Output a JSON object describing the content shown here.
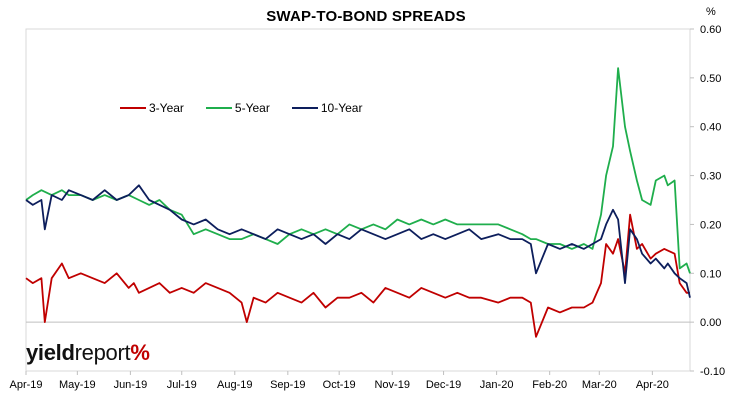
{
  "chart_data": {
    "type": "line",
    "title": "SWAP-TO-BOND SPREADS",
    "unit_label": "%",
    "xlabel": "",
    "ylabel": "",
    "ylim": [
      -0.1,
      0.6
    ],
    "y_ticks": [
      "-0.10",
      "0.00",
      "0.10",
      "0.20",
      "0.30",
      "0.40",
      "0.50",
      "0.60"
    ],
    "x_tick_labels": [
      "Apr-19",
      "May-19",
      "Jun-19",
      "Jul-19",
      "Aug-19",
      "Sep-19",
      "Oct-19",
      "Nov-19",
      "Dec-19",
      "Jan-20",
      "Feb-20",
      "Mar-20",
      "Apr-20"
    ],
    "x_tick_dates": [
      "2019-04-01",
      "2019-05-01",
      "2019-06-01",
      "2019-07-01",
      "2019-08-01",
      "2019-09-01",
      "2019-10-01",
      "2019-11-01",
      "2019-12-01",
      "2020-01-01",
      "2020-02-01",
      "2020-03-01",
      "2020-04-01"
    ],
    "x_range": [
      "2019-04-01",
      "2020-04-23"
    ],
    "grid": false,
    "legend_position": "top-left",
    "series": [
      {
        "name": "3-Year",
        "color": "#c00000",
        "x": [
          "2019-04-01",
          "2019-04-05",
          "2019-04-10",
          "2019-04-12",
          "2019-04-16",
          "2019-04-22",
          "2019-04-26",
          "2019-05-03",
          "2019-05-10",
          "2019-05-17",
          "2019-05-24",
          "2019-05-31",
          "2019-06-03",
          "2019-06-06",
          "2019-06-12",
          "2019-06-18",
          "2019-06-24",
          "2019-07-01",
          "2019-07-08",
          "2019-07-15",
          "2019-07-22",
          "2019-07-29",
          "2019-08-05",
          "2019-08-08",
          "2019-08-12",
          "2019-08-19",
          "2019-08-26",
          "2019-09-02",
          "2019-09-09",
          "2019-09-16",
          "2019-09-23",
          "2019-09-30",
          "2019-10-07",
          "2019-10-14",
          "2019-10-21",
          "2019-10-28",
          "2019-11-04",
          "2019-11-11",
          "2019-11-18",
          "2019-11-25",
          "2019-12-02",
          "2019-12-09",
          "2019-12-16",
          "2019-12-23",
          "2020-01-02",
          "2020-01-09",
          "2020-01-16",
          "2020-01-21",
          "2020-01-24",
          "2020-01-31",
          "2020-02-07",
          "2020-02-14",
          "2020-02-21",
          "2020-02-26",
          "2020-03-02",
          "2020-03-05",
          "2020-03-09",
          "2020-03-12",
          "2020-03-16",
          "2020-03-19",
          "2020-03-23",
          "2020-03-26",
          "2020-03-31",
          "2020-04-03",
          "2020-04-08",
          "2020-04-14",
          "2020-04-17",
          "2020-04-21",
          "2020-04-23"
        ],
        "values": [
          0.09,
          0.08,
          0.09,
          0.0,
          0.09,
          0.12,
          0.09,
          0.1,
          0.09,
          0.08,
          0.1,
          0.07,
          0.08,
          0.06,
          0.07,
          0.08,
          0.06,
          0.07,
          0.06,
          0.08,
          0.07,
          0.06,
          0.04,
          0.0,
          0.05,
          0.04,
          0.06,
          0.05,
          0.04,
          0.06,
          0.03,
          0.05,
          0.05,
          0.06,
          0.04,
          0.07,
          0.06,
          0.05,
          0.07,
          0.06,
          0.05,
          0.06,
          0.05,
          0.05,
          0.04,
          0.05,
          0.05,
          0.04,
          -0.03,
          0.03,
          0.02,
          0.03,
          0.03,
          0.04,
          0.08,
          0.16,
          0.14,
          0.17,
          0.1,
          0.22,
          0.15,
          0.16,
          0.13,
          0.14,
          0.15,
          0.14,
          0.08,
          0.06,
          0.06
        ]
      },
      {
        "name": "5-Year",
        "color": "#1fae4c",
        "x": [
          "2019-04-01",
          "2019-04-05",
          "2019-04-10",
          "2019-04-16",
          "2019-04-22",
          "2019-04-26",
          "2019-05-03",
          "2019-05-10",
          "2019-05-17",
          "2019-05-24",
          "2019-05-31",
          "2019-06-06",
          "2019-06-12",
          "2019-06-18",
          "2019-06-24",
          "2019-07-01",
          "2019-07-08",
          "2019-07-15",
          "2019-07-22",
          "2019-07-29",
          "2019-08-05",
          "2019-08-12",
          "2019-08-19",
          "2019-08-26",
          "2019-09-02",
          "2019-09-09",
          "2019-09-16",
          "2019-09-23",
          "2019-09-30",
          "2019-10-07",
          "2019-10-14",
          "2019-10-21",
          "2019-10-28",
          "2019-11-04",
          "2019-11-11",
          "2019-11-18",
          "2019-11-25",
          "2019-12-02",
          "2019-12-09",
          "2019-12-16",
          "2019-12-23",
          "2020-01-02",
          "2020-01-09",
          "2020-01-16",
          "2020-01-21",
          "2020-01-24",
          "2020-01-31",
          "2020-02-07",
          "2020-02-14",
          "2020-02-21",
          "2020-02-26",
          "2020-03-02",
          "2020-03-05",
          "2020-03-09",
          "2020-03-12",
          "2020-03-16",
          "2020-03-19",
          "2020-03-23",
          "2020-03-26",
          "2020-03-31",
          "2020-04-03",
          "2020-04-08",
          "2020-04-10",
          "2020-04-14",
          "2020-04-17",
          "2020-04-21",
          "2020-04-23"
        ],
        "values": [
          0.25,
          0.26,
          0.27,
          0.26,
          0.27,
          0.26,
          0.26,
          0.25,
          0.26,
          0.25,
          0.26,
          0.25,
          0.24,
          0.25,
          0.23,
          0.22,
          0.18,
          0.19,
          0.18,
          0.17,
          0.17,
          0.18,
          0.17,
          0.16,
          0.18,
          0.19,
          0.18,
          0.19,
          0.18,
          0.2,
          0.19,
          0.2,
          0.19,
          0.21,
          0.2,
          0.21,
          0.2,
          0.21,
          0.2,
          0.2,
          0.2,
          0.2,
          0.19,
          0.18,
          0.17,
          0.17,
          0.16,
          0.16,
          0.15,
          0.16,
          0.15,
          0.22,
          0.3,
          0.36,
          0.52,
          0.4,
          0.35,
          0.29,
          0.25,
          0.24,
          0.29,
          0.3,
          0.28,
          0.29,
          0.11,
          0.12,
          0.1
        ]
      },
      {
        "name": "10-Year",
        "color": "#0d1e5c",
        "x": [
          "2019-04-01",
          "2019-04-05",
          "2019-04-10",
          "2019-04-12",
          "2019-04-16",
          "2019-04-22",
          "2019-04-26",
          "2019-05-03",
          "2019-05-10",
          "2019-05-17",
          "2019-05-24",
          "2019-05-31",
          "2019-06-06",
          "2019-06-12",
          "2019-06-18",
          "2019-06-24",
          "2019-07-01",
          "2019-07-08",
          "2019-07-15",
          "2019-07-22",
          "2019-07-29",
          "2019-08-05",
          "2019-08-12",
          "2019-08-19",
          "2019-08-26",
          "2019-09-02",
          "2019-09-09",
          "2019-09-16",
          "2019-09-23",
          "2019-09-30",
          "2019-10-07",
          "2019-10-14",
          "2019-10-21",
          "2019-10-28",
          "2019-11-04",
          "2019-11-11",
          "2019-11-18",
          "2019-11-25",
          "2019-12-02",
          "2019-12-09",
          "2019-12-16",
          "2019-12-23",
          "2020-01-02",
          "2020-01-09",
          "2020-01-16",
          "2020-01-21",
          "2020-01-24",
          "2020-01-31",
          "2020-02-07",
          "2020-02-14",
          "2020-02-21",
          "2020-02-26",
          "2020-03-02",
          "2020-03-05",
          "2020-03-09",
          "2020-03-12",
          "2020-03-16",
          "2020-03-19",
          "2020-03-23",
          "2020-03-26",
          "2020-03-31",
          "2020-04-03",
          "2020-04-08",
          "2020-04-10",
          "2020-04-14",
          "2020-04-17",
          "2020-04-21",
          "2020-04-23"
        ],
        "values": [
          0.25,
          0.24,
          0.25,
          0.19,
          0.26,
          0.25,
          0.27,
          0.26,
          0.25,
          0.27,
          0.25,
          0.26,
          0.28,
          0.25,
          0.24,
          0.23,
          0.21,
          0.2,
          0.21,
          0.19,
          0.18,
          0.19,
          0.18,
          0.17,
          0.19,
          0.18,
          0.17,
          0.18,
          0.16,
          0.18,
          0.17,
          0.19,
          0.18,
          0.17,
          0.18,
          0.19,
          0.17,
          0.18,
          0.17,
          0.18,
          0.19,
          0.17,
          0.18,
          0.17,
          0.17,
          0.16,
          0.1,
          0.16,
          0.15,
          0.16,
          0.15,
          0.16,
          0.17,
          0.2,
          0.23,
          0.21,
          0.08,
          0.19,
          0.17,
          0.14,
          0.12,
          0.13,
          0.11,
          0.12,
          0.1,
          0.09,
          0.08,
          0.05
        ]
      }
    ]
  },
  "logo": {
    "part1": "yield",
    "part2": "report",
    "part3": "%"
  }
}
